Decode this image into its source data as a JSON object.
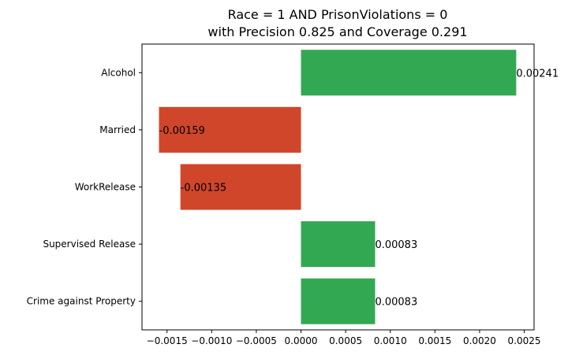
{
  "chart_data": {
    "type": "bar",
    "orientation": "horizontal",
    "title": [
      "Race = 1 AND PrisonViolations = 0",
      "with Precision 0.825 and Coverage 0.291"
    ],
    "categories": [
      "Alcohol",
      "Married",
      "WorkRelease",
      "Supervised Release",
      "Crime against Property"
    ],
    "values": [
      0.00241,
      -0.00159,
      -0.00135,
      0.00083,
      0.00083
    ],
    "value_labels": [
      "0.00241",
      "-0.00159",
      "-0.00135",
      "0.00083",
      "0.00083"
    ],
    "xlim": [
      -0.00178,
      0.00261
    ],
    "xticks": [
      -0.0015,
      -0.001,
      -0.0005,
      0,
      0.0005,
      0.001,
      0.0015,
      0.002,
      0.0025
    ],
    "xtick_labels": [
      "−0.0015",
      "−0.0010",
      "−0.0005",
      "0.0000",
      "0.0005",
      "0.0010",
      "0.0015",
      "0.0020",
      "0.0025"
    ],
    "xlabel": "",
    "ylabel": "",
    "grid": false,
    "colors": {
      "positive": "#33a852",
      "negative": "#d0462b"
    }
  }
}
